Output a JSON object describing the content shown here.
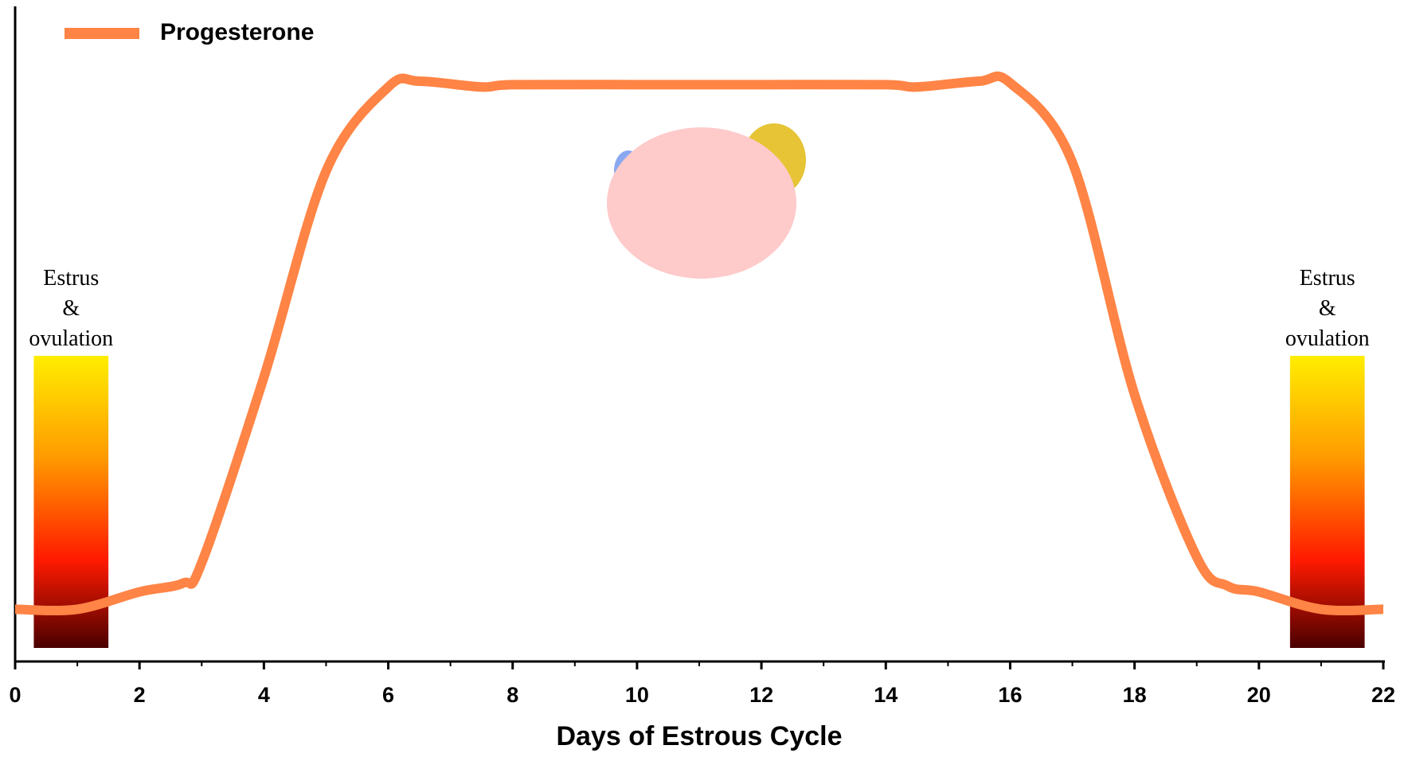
{
  "chart_data": {
    "type": "line",
    "x_label": "Days of Estrous Cycle",
    "xlim": [
      0,
      22
    ],
    "xticks": [
      0,
      2,
      4,
      6,
      8,
      10,
      12,
      14,
      16,
      18,
      20,
      22
    ],
    "series": [
      {
        "name": "Progesterone",
        "color": "#ff8445",
        "x": [
          0,
          1,
          2,
          2.7,
          3,
          4,
          5,
          6,
          6.5,
          7.5,
          8,
          10,
          12,
          14,
          14.5,
          15.5,
          16,
          17,
          18,
          19,
          19.5,
          20,
          21,
          22
        ],
        "values": [
          9,
          9,
          12,
          13.5,
          17,
          49,
          84.5,
          99,
          100,
          99,
          99.4,
          99.4,
          99.4,
          99.4,
          99,
          100,
          99.7,
          86,
          46,
          18,
          13,
          12,
          9,
          9
        ]
      }
    ],
    "annotations": [
      {
        "lines": [
          "Estrus",
          "&",
          "ovulation"
        ],
        "start": 0.3,
        "end": 1.5
      },
      {
        "lines": [
          "Estrus",
          "&",
          "ovulation"
        ],
        "start": 20.5,
        "end": 21.7
      }
    ]
  }
}
